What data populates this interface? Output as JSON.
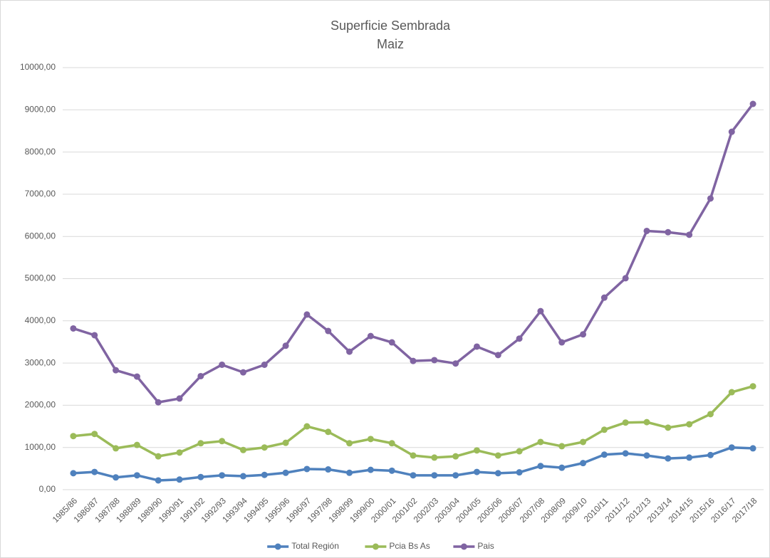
{
  "chart_data": {
    "type": "line",
    "title": "Superficie Sembrada",
    "subtitle": "Maiz",
    "categories": [
      "1985/86",
      "1986/87",
      "1987/88",
      "1988/89",
      "1989/90",
      "1990/91",
      "1991/92",
      "1992/93",
      "1993/94",
      "1994/95",
      "1995/96",
      "1996/97",
      "1997/98",
      "1998/99",
      "1999/00",
      "2000/01",
      "2001/02",
      "2002/03",
      "2003/04",
      "2004/05",
      "2005/06",
      "2006/07",
      "2007/08",
      "2008/09",
      "2009/10",
      "2010/11",
      "2011/12",
      "2012/13",
      "2013/14",
      "2014/15",
      "2015/16",
      "2016/17",
      "2017/18"
    ],
    "series": [
      {
        "name": "Total Región",
        "color": "#4f81bd",
        "values": [
          390,
          420,
          290,
          340,
          220,
          240,
          300,
          340,
          320,
          350,
          400,
          490,
          480,
          400,
          470,
          450,
          340,
          340,
          340,
          420,
          390,
          410,
          560,
          520,
          630,
          830,
          860,
          810,
          740,
          760,
          820,
          1000,
          980
        ]
      },
      {
        "name": "Pcia Bs As",
        "color": "#9bbb59",
        "values": [
          1270,
          1320,
          980,
          1060,
          790,
          880,
          1100,
          1150,
          940,
          1000,
          1110,
          1500,
          1370,
          1100,
          1200,
          1100,
          810,
          760,
          790,
          930,
          810,
          910,
          1130,
          1030,
          1130,
          1420,
          1590,
          1600,
          1470,
          1550,
          1790,
          2310,
          2450
        ]
      },
      {
        "name": "Pais",
        "color": "#8064a2",
        "values": [
          3820,
          3660,
          2830,
          2680,
          2070,
          2160,
          2690,
          2960,
          2780,
          2960,
          3410,
          4150,
          3760,
          3270,
          3640,
          3490,
          3050,
          3070,
          2990,
          3390,
          3190,
          3580,
          4230,
          3490,
          3680,
          4550,
          5010,
          6130,
          6100,
          6040,
          6900,
          8480,
          9140
        ]
      }
    ],
    "ylim": [
      0,
      10000
    ],
    "yticks": [
      {
        "value": 0,
        "label": "0,00"
      },
      {
        "value": 1000,
        "label": "1000,00"
      },
      {
        "value": 2000,
        "label": "2000,00"
      },
      {
        "value": 3000,
        "label": "3000,00"
      },
      {
        "value": 4000,
        "label": "4000,00"
      },
      {
        "value": 5000,
        "label": "5000,00"
      },
      {
        "value": 6000,
        "label": "6000,00"
      },
      {
        "value": 7000,
        "label": "7000,00"
      },
      {
        "value": 8000,
        "label": "8000,00"
      },
      {
        "value": 9000,
        "label": "9000,00"
      },
      {
        "value": 10000,
        "label": "10000,00"
      }
    ],
    "grid": true,
    "legend": "bottom"
  }
}
